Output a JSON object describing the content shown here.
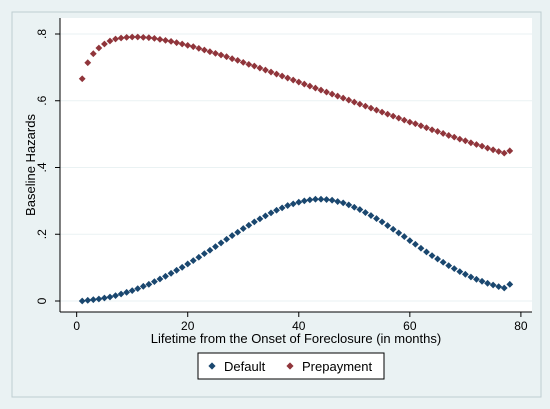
{
  "colors": {
    "background": "#eaf2f3",
    "plot_background": "#ffffff",
    "grid": "#eaf2f3",
    "default": "#1a476f",
    "prepayment": "#90353b"
  },
  "chart_data": {
    "type": "scatter",
    "title": "",
    "xlabel": "Lifetime from the Onset of Foreclosure (in months)",
    "ylabel": "Baseline Hazards",
    "xlim": [
      0,
      80
    ],
    "ylim": [
      0,
      0.8
    ],
    "x_ticks": [
      0,
      20,
      40,
      60,
      80
    ],
    "x_tick_labels": [
      "0",
      "20",
      "40",
      "60",
      "80"
    ],
    "y_ticks": [
      0,
      0.2,
      0.4,
      0.6,
      0.8
    ],
    "y_tick_labels": [
      "0",
      ".2",
      ".4",
      ".6",
      ".8"
    ],
    "grid": true,
    "legend_position": "bottom",
    "marker": "diamond",
    "x": [
      1,
      2,
      3,
      4,
      5,
      6,
      7,
      8,
      9,
      10,
      11,
      12,
      13,
      14,
      15,
      16,
      17,
      18,
      19,
      20,
      21,
      22,
      23,
      24,
      25,
      26,
      27,
      28,
      29,
      30,
      31,
      32,
      33,
      34,
      35,
      36,
      37,
      38,
      39,
      40,
      41,
      42,
      43,
      44,
      45,
      46,
      47,
      48,
      49,
      50,
      51,
      52,
      53,
      54,
      55,
      56,
      57,
      58,
      59,
      60,
      61,
      62,
      63,
      64,
      65,
      66,
      67,
      68,
      69,
      70,
      71,
      72,
      73,
      74,
      75,
      76,
      77,
      78
    ],
    "series": [
      {
        "name": "Default",
        "values": [
          0.0,
          0.002,
          0.004,
          0.006,
          0.009,
          0.012,
          0.016,
          0.021,
          0.026,
          0.031,
          0.037,
          0.044,
          0.05,
          0.058,
          0.066,
          0.074,
          0.083,
          0.092,
          0.101,
          0.111,
          0.121,
          0.131,
          0.142,
          0.152,
          0.163,
          0.174,
          0.185,
          0.196,
          0.206,
          0.217,
          0.227,
          0.237,
          0.246,
          0.255,
          0.264,
          0.272,
          0.279,
          0.286,
          0.291,
          0.296,
          0.3,
          0.303,
          0.305,
          0.305,
          0.304,
          0.302,
          0.298,
          0.294,
          0.288,
          0.281,
          0.274,
          0.265,
          0.256,
          0.247,
          0.237,
          0.226,
          0.215,
          0.204,
          0.193,
          0.181,
          0.17,
          0.158,
          0.147,
          0.136,
          0.126,
          0.116,
          0.106,
          0.097,
          0.088,
          0.08,
          0.072,
          0.065,
          0.059,
          0.053,
          0.048,
          0.043,
          0.039,
          0.05
        ]
      },
      {
        "name": "Prepayment",
        "values": [
          0.666,
          0.714,
          0.741,
          0.758,
          0.77,
          0.779,
          0.785,
          0.788,
          0.79,
          0.791,
          0.791,
          0.79,
          0.789,
          0.787,
          0.784,
          0.781,
          0.778,
          0.774,
          0.77,
          0.766,
          0.762,
          0.757,
          0.752,
          0.747,
          0.742,
          0.737,
          0.732,
          0.726,
          0.721,
          0.715,
          0.709,
          0.704,
          0.698,
          0.692,
          0.686,
          0.68,
          0.674,
          0.668,
          0.662,
          0.656,
          0.65,
          0.644,
          0.638,
          0.632,
          0.626,
          0.62,
          0.614,
          0.608,
          0.602,
          0.596,
          0.59,
          0.584,
          0.578,
          0.572,
          0.566,
          0.56,
          0.554,
          0.548,
          0.542,
          0.536,
          0.531,
          0.525,
          0.519,
          0.513,
          0.508,
          0.502,
          0.496,
          0.491,
          0.485,
          0.48,
          0.474,
          0.469,
          0.464,
          0.458,
          0.453,
          0.448,
          0.443,
          0.45
        ]
      }
    ]
  }
}
